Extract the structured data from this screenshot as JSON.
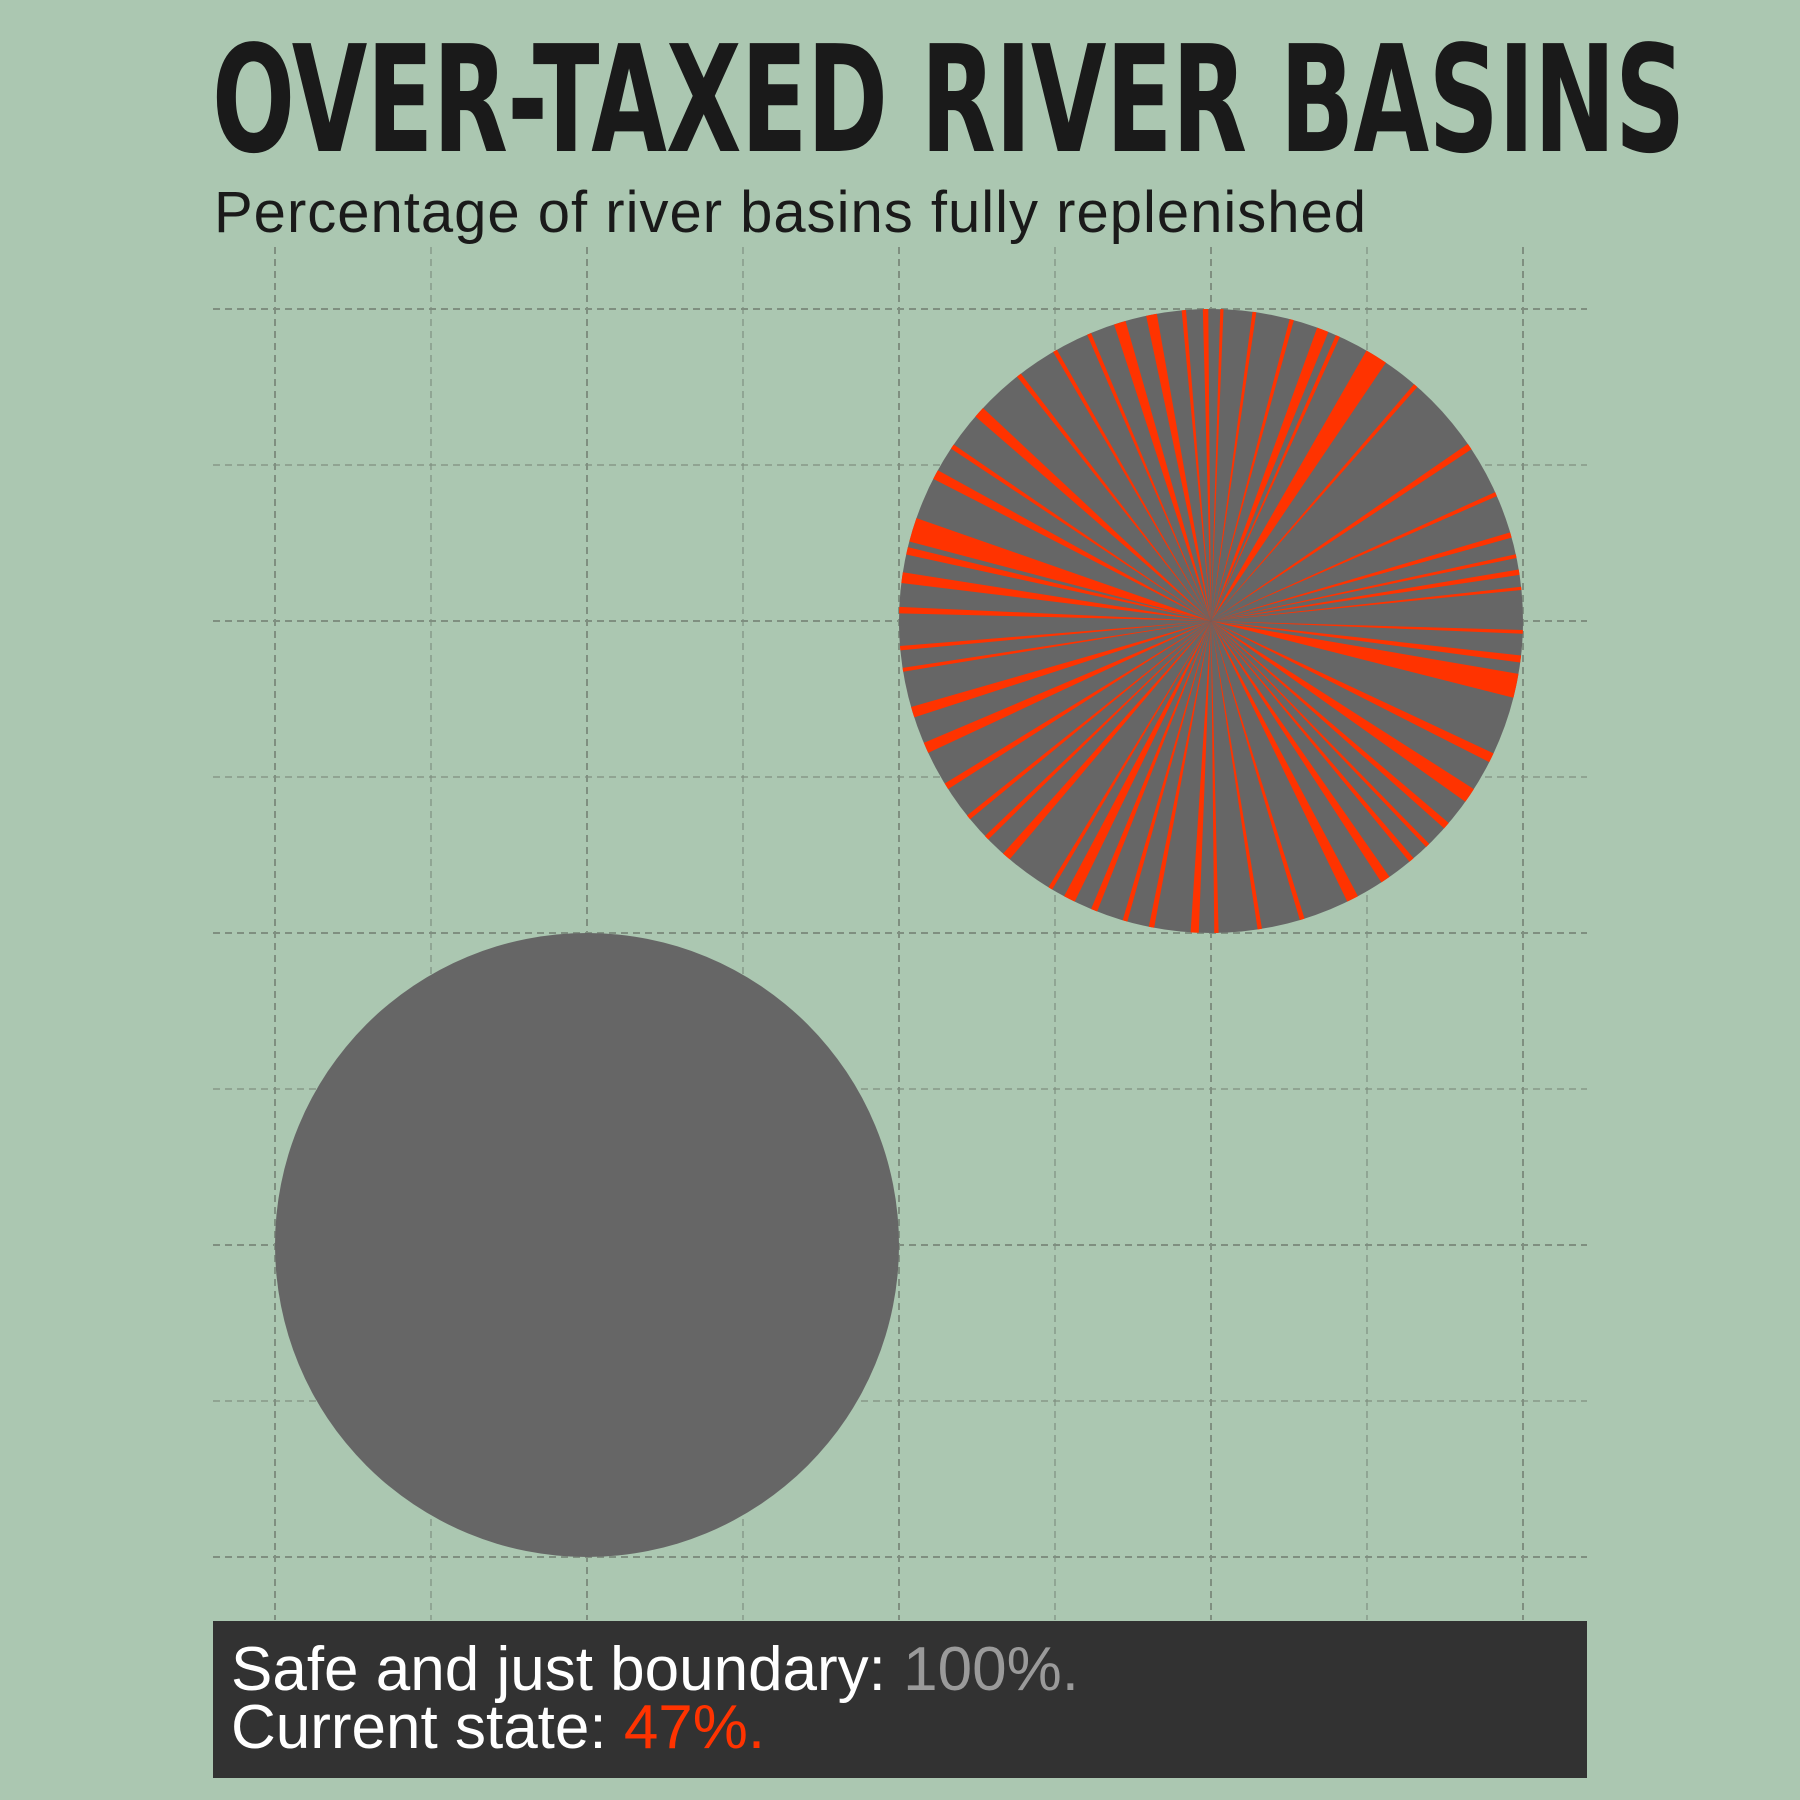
{
  "title": "OVER-TAXED RIVER BASINS",
  "subtitle": "Percentage of river basins fully replenished",
  "legend": {
    "safe_label": "Safe and just boundary: ",
    "safe_value": "100%.",
    "current_label": "Current state: ",
    "current_value": "47%."
  },
  "colors": {
    "background": "#abc7b1",
    "circle_fill": "#666666",
    "accent_red": "#ff3300",
    "legend_bg": "#323232",
    "grid": "#7f8f80"
  },
  "chart_data": [
    {
      "type": "pie",
      "name": "Safe and just boundary",
      "value_percent": 100,
      "fill": "#666666"
    },
    {
      "type": "pie",
      "name": "Current state",
      "value_percent": 47,
      "fill": "#666666",
      "stripe_color": "#ff3300",
      "stripe_angles_deg": [
        2,
        8,
        15,
        21,
        24,
        32,
        41,
        56,
        66,
        74,
        78,
        81,
        84,
        92,
        97,
        102,
        116,
        124,
        131,
        136,
        140,
        146,
        153,
        163,
        171,
        179,
        183,
        191,
        196,
        202,
        207,
        211,
        221,
        226,
        231,
        238,
        246,
        253,
        261,
        265,
        272,
        278,
        283,
        287,
        298,
        304,
        312,
        322,
        330,
        337,
        343,
        349,
        355,
        359
      ],
      "stripe_widths_deg": [
        0.6,
        0.7,
        0.8,
        2.2,
        0.8,
        4.2,
        0.8,
        1.2,
        0.8,
        1.0,
        0.7,
        1.0,
        0.6,
        0.7,
        1.3,
        4.5,
        1.8,
        2.8,
        1.3,
        0.8,
        1.0,
        1.8,
        2.2,
        0.9,
        0.8,
        0.8,
        1.5,
        1.0,
        0.9,
        1.2,
        2.2,
        0.8,
        1.6,
        0.9,
        0.9,
        1.2,
        2.0,
        2.0,
        0.7,
        0.8,
        1.2,
        2.0,
        1.4,
        4.5,
        1.8,
        0.9,
        2.1,
        0.9,
        0.8,
        0.8,
        2.2,
        2.0,
        0.8,
        1.0
      ]
    }
  ]
}
